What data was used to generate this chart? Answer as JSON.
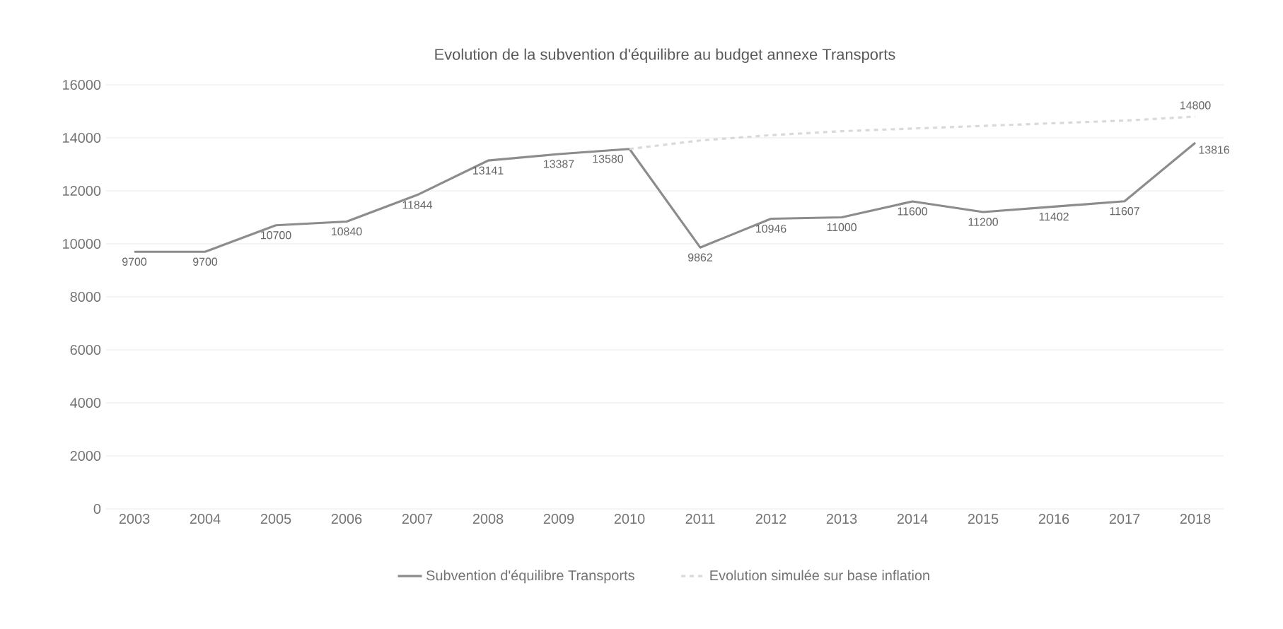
{
  "chart_data": {
    "type": "line",
    "title": "Evolution de la subvention d'équilibre au budget annexe Transports",
    "categories": [
      "2003",
      "2004",
      "2005",
      "2006",
      "2007",
      "2008",
      "2009",
      "2010",
      "2011",
      "2012",
      "2013",
      "2014",
      "2015",
      "2016",
      "2017",
      "2018"
    ],
    "series": [
      {
        "name": "Subvention d'équilibre Transports",
        "color": "#8c8c8c",
        "line_style": "solid",
        "values": [
          9700,
          9700,
          10700,
          10840,
          11844,
          13141,
          13387,
          13580,
          9862,
          10946,
          11000,
          11600,
          11200,
          11402,
          11607,
          13816
        ],
        "value_labels": [
          "9700",
          "9700",
          "10700",
          "10840",
          "11844",
          "13141",
          "13387",
          "13580",
          "9862",
          "10946",
          "11000",
          "11600",
          "11200",
          "11402",
          "11607",
          "13816"
        ]
      },
      {
        "name": "Evolution simulée sur base inflation",
        "color": "#d9d9d9",
        "line_style": "dashed",
        "values": [
          null,
          null,
          null,
          null,
          null,
          null,
          null,
          13580,
          13900,
          14100,
          14250,
          14350,
          14450,
          14550,
          14650,
          14800
        ],
        "value_labels": [
          null,
          null,
          null,
          null,
          null,
          null,
          null,
          null,
          null,
          null,
          null,
          null,
          null,
          null,
          null,
          "14800"
        ]
      }
    ],
    "ylim": [
      0,
      16000
    ],
    "yticks": [
      0,
      2000,
      4000,
      6000,
      8000,
      10000,
      12000,
      14000,
      16000
    ],
    "grid": "y",
    "legend": "bottom",
    "marker": "none"
  }
}
